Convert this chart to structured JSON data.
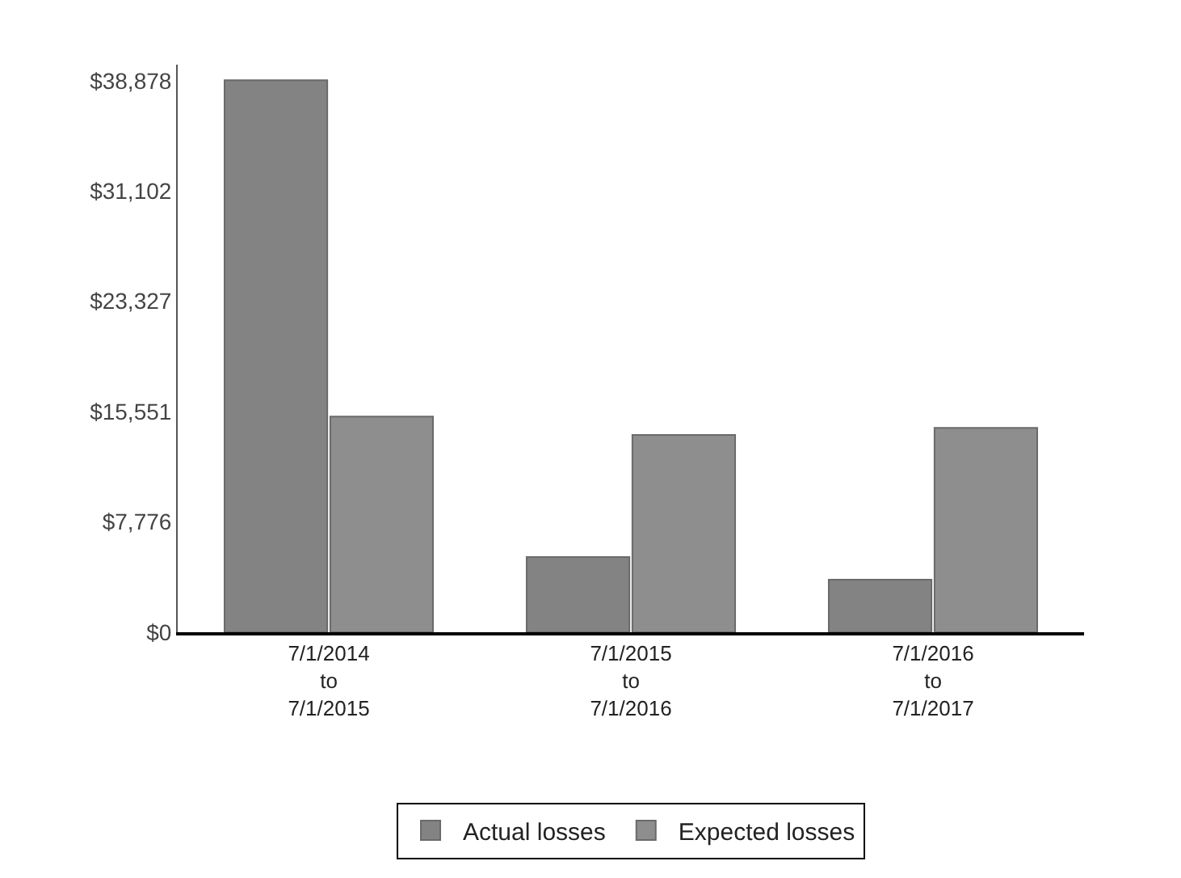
{
  "chart_data": {
    "type": "bar",
    "categories": [
      "7/1/2014\nto\n7/1/2015",
      "7/1/2015\nto\n7/1/2016",
      "7/1/2016\nto\n7/1/2017"
    ],
    "series": [
      {
        "name": "Actual losses",
        "color": "#838383",
        "values": [
          38900,
          5300,
          3700
        ]
      },
      {
        "name": "Expected losses",
        "color": "#8e8e8e",
        "values": [
          15200,
          13900,
          14400
        ]
      }
    ],
    "ylim": [
      0,
      40000
    ],
    "yticks": [
      {
        "value": 0,
        "label": "$0"
      },
      {
        "value": 7776,
        "label": "$7,776"
      },
      {
        "value": 15551,
        "label": "$15,551"
      },
      {
        "value": 23327,
        "label": "$23,327"
      },
      {
        "value": 31102,
        "label": "$31,102"
      },
      {
        "value": 38878,
        "label": "$38,878"
      }
    ],
    "legend": "bottom"
  }
}
